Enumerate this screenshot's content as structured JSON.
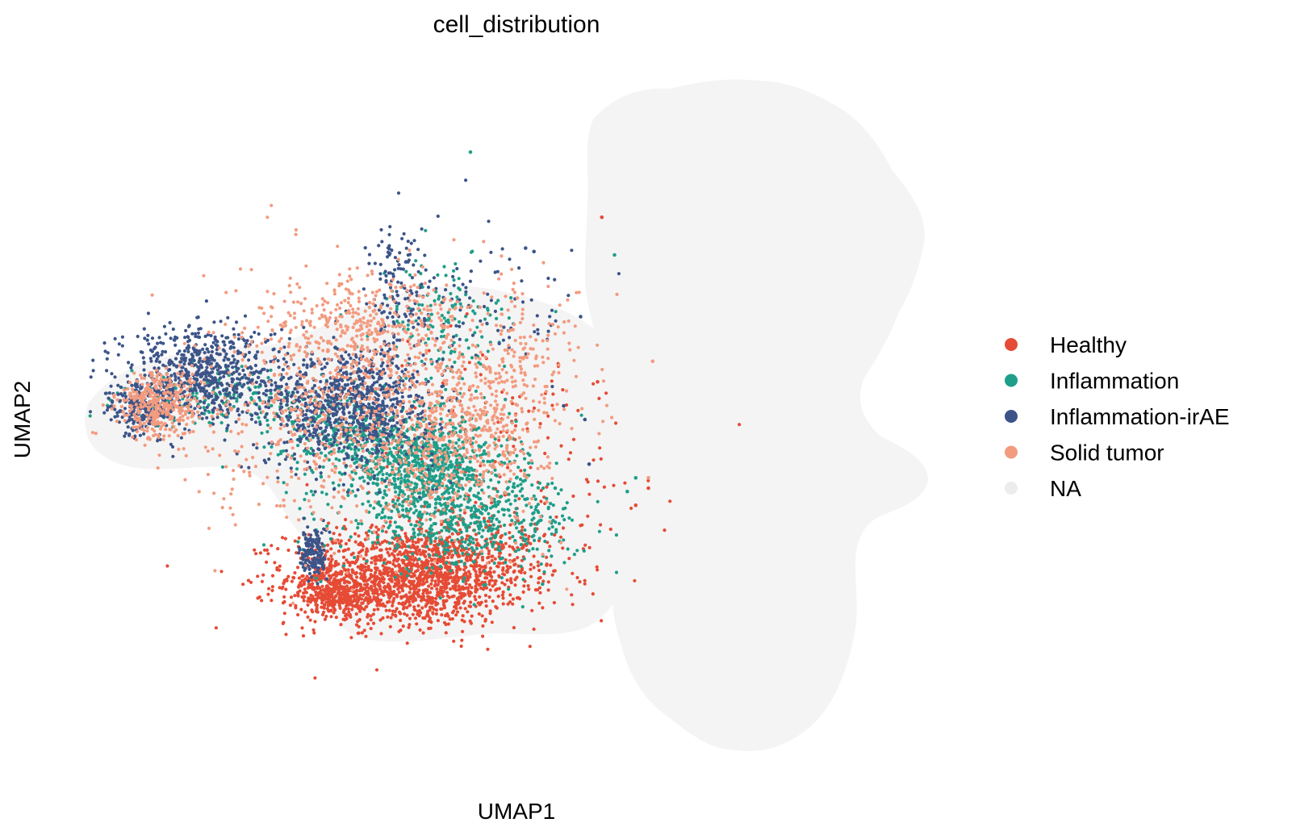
{
  "chart_data": {
    "type": "scatter",
    "title": "cell_distribution",
    "xlabel": "UMAP1",
    "ylabel": "UMAP2",
    "xlim": [
      0,
      10
    ],
    "ylim": [
      0,
      10
    ],
    "grid": false,
    "legend_position": "right",
    "series": [
      {
        "name": "Healthy",
        "color": "#e64b35",
        "clusters": [
          {
            "cx": 3.85,
            "cy": 2.7,
            "sx": 0.7,
            "sy": 0.35,
            "n": 1500
          },
          {
            "cx": 3.0,
            "cy": 2.45,
            "sx": 0.2,
            "sy": 0.15,
            "n": 300
          },
          {
            "cx": 4.7,
            "cy": 3.0,
            "sx": 0.5,
            "sy": 0.4,
            "n": 250
          },
          {
            "cx": 5.0,
            "cy": 4.4,
            "sx": 1.0,
            "sy": 0.9,
            "n": 160
          }
        ],
        "points": [
          [
            6.15,
            7.95
          ],
          [
            6.1,
            5.55
          ],
          [
            6.7,
            4.0
          ],
          [
            6.55,
            3.75
          ]
        ]
      },
      {
        "name": "Inflammation",
        "color": "#1f9e89",
        "clusters": [
          {
            "cx": 4.1,
            "cy": 4.3,
            "sx": 0.5,
            "sy": 0.35,
            "n": 700
          },
          {
            "cx": 4.5,
            "cy": 3.5,
            "sx": 0.7,
            "sy": 0.35,
            "n": 550
          },
          {
            "cx": 3.3,
            "cy": 4.75,
            "sx": 0.45,
            "sy": 0.3,
            "n": 300
          },
          {
            "cx": 1.7,
            "cy": 5.3,
            "sx": 0.6,
            "sy": 0.2,
            "n": 180
          },
          {
            "cx": 4.3,
            "cy": 6.4,
            "sx": 0.4,
            "sy": 0.5,
            "n": 150
          }
        ],
        "points": [
          [
            4.6,
            8.9
          ],
          [
            6.3,
            7.4
          ],
          [
            5.45,
            2.6
          ],
          [
            6.55,
            4.15
          ],
          [
            6.45,
            3.95
          ],
          [
            5.6,
            4.0
          ]
        ]
      },
      {
        "name": "Inflammation-irAE",
        "color": "#3c5488",
        "clusters": [
          {
            "cx": 3.2,
            "cy": 5.2,
            "sx": 0.5,
            "sy": 0.45,
            "n": 900
          },
          {
            "cx": 1.4,
            "cy": 5.7,
            "sx": 0.45,
            "sy": 0.35,
            "n": 650
          },
          {
            "cx": 0.7,
            "cy": 5.15,
            "sx": 0.2,
            "sy": 0.2,
            "n": 200
          },
          {
            "cx": 2.75,
            "cy": 3.05,
            "sx": 0.08,
            "sy": 0.2,
            "n": 150
          },
          {
            "cx": 3.75,
            "cy": 6.9,
            "sx": 0.2,
            "sy": 0.5,
            "n": 120
          },
          {
            "cx": 4.8,
            "cy": 6.6,
            "sx": 0.6,
            "sy": 0.5,
            "n": 90
          }
        ],
        "points": [
          [
            5.25,
            7.5
          ],
          [
            5.35,
            7.45
          ],
          [
            5.9,
            6.5
          ],
          [
            5.7,
            5.2
          ],
          [
            5.95,
            5.0
          ],
          [
            6.0,
            4.35
          ]
        ]
      },
      {
        "name": "Solid tumor",
        "color": "#f39b7f",
        "clusters": [
          {
            "cx": 3.3,
            "cy": 5.1,
            "sx": 0.9,
            "sy": 0.9,
            "n": 800
          },
          {
            "cx": 4.6,
            "cy": 4.9,
            "sx": 0.45,
            "sy": 0.6,
            "n": 400
          },
          {
            "cx": 0.95,
            "cy": 5.2,
            "sx": 0.25,
            "sy": 0.25,
            "n": 350
          },
          {
            "cx": 3.3,
            "cy": 6.4,
            "sx": 0.6,
            "sy": 0.4,
            "n": 300
          },
          {
            "cx": 5.2,
            "cy": 5.8,
            "sx": 0.35,
            "sy": 0.6,
            "n": 150
          }
        ],
        "points": [
          [
            6.75,
            5.85
          ],
          [
            6.7,
            4.15
          ],
          [
            5.5,
            3.8
          ]
        ]
      },
      {
        "name": "NA",
        "color": "#ececec"
      }
    ]
  }
}
